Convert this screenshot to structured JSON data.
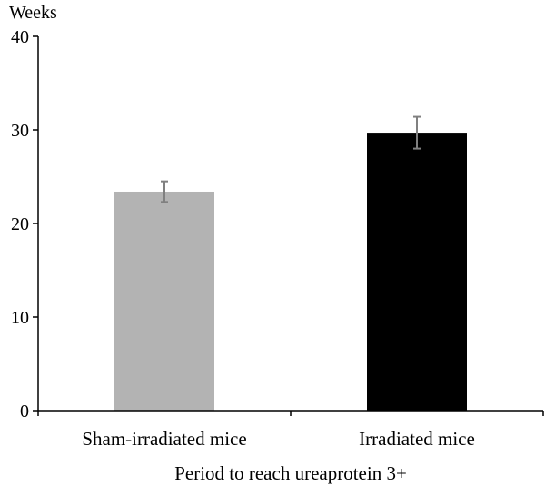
{
  "chart_data": {
    "type": "bar",
    "categories": [
      "Sham-irradiated mice",
      "Irradiated mice"
    ],
    "values": [
      23.4,
      29.7
    ],
    "error": [
      1.1,
      1.7
    ],
    "colors": [
      "#b3b3b3",
      "#000000"
    ],
    "error_color": "#808080",
    "xlabel": "Period to reach ureaprotein 3+",
    "ylabel": "Weeks",
    "ylim": [
      0,
      40
    ],
    "yticks": [
      "0",
      "10",
      "20",
      "30",
      "40"
    ],
    "grid": false,
    "legend": "none"
  }
}
